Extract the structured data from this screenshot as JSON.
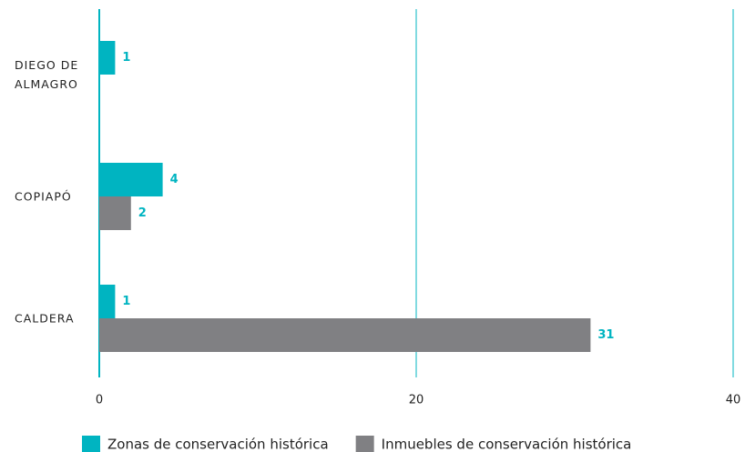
{
  "chart_data": {
    "type": "bar",
    "orientation": "horizontal",
    "categories": [
      "DIEGO DE ALMAGRO",
      "COPIAPÓ",
      "CALDERA"
    ],
    "series": [
      {
        "name": "Zonas de conservación histórica",
        "color": "#00b4c1",
        "values": [
          1,
          4,
          1
        ]
      },
      {
        "name": "Inmuebles de conservación histórica",
        "color": "#808083",
        "values": [
          null,
          2,
          31
        ]
      }
    ],
    "xlim": [
      0,
      40
    ],
    "xticks": [
      0,
      20,
      40
    ],
    "grid": true,
    "legend": "bottom"
  }
}
